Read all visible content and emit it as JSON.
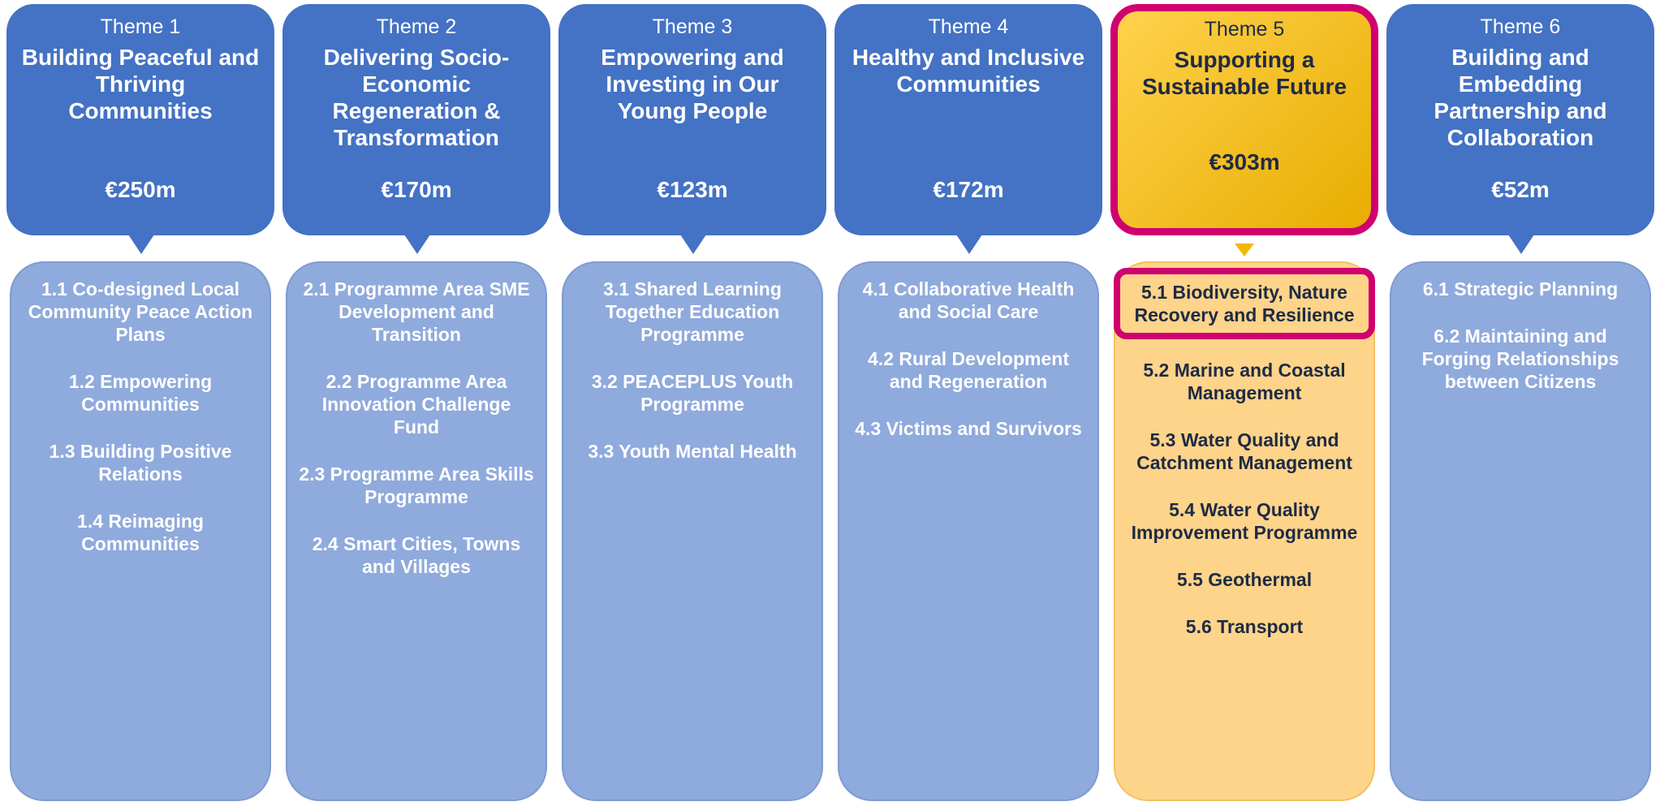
{
  "themes": [
    {
      "label": "Theme 1",
      "title": "Building Peaceful and Thriving Communities",
      "amount": "€250m",
      "highlighted": false,
      "items": [
        {
          "text": "1.1 Co-designed Local Community Peace Action Plans",
          "highlighted": false
        },
        {
          "text": "1.2 Empowering Communities",
          "highlighted": false
        },
        {
          "text": "1.3 Building Positive Relations",
          "highlighted": false
        },
        {
          "text": "1.4 Reimaging Communities",
          "highlighted": false
        }
      ]
    },
    {
      "label": "Theme 2",
      "title": "Delivering Socio-Economic Regeneration & Transformation",
      "amount": "€170m",
      "highlighted": false,
      "items": [
        {
          "text": "2.1 Programme Area SME Development and Transition",
          "highlighted": false
        },
        {
          "text": "2.2 Programme Area Innovation Challenge Fund",
          "highlighted": false
        },
        {
          "text": "2.3 Programme Area Skills Programme",
          "highlighted": false
        },
        {
          "text": "2.4 Smart Cities, Towns and Villages",
          "highlighted": false
        }
      ]
    },
    {
      "label": "Theme 3",
      "title": "Empowering and Investing in Our Young People",
      "amount": "€123m",
      "highlighted": false,
      "items": [
        {
          "text": "3.1 Shared Learning Together Education Programme",
          "highlighted": false
        },
        {
          "text": "3.2 PEACEPLUS Youth Programme",
          "highlighted": false
        },
        {
          "text": "3.3 Youth Mental Health",
          "highlighted": false
        }
      ]
    },
    {
      "label": "Theme 4",
      "title": "Healthy and Inclusive Communities",
      "amount": "€172m",
      "highlighted": false,
      "items": [
        {
          "text": "4.1 Collaborative Health and Social Care",
          "highlighted": false
        },
        {
          "text": "4.2 Rural Development and Regeneration",
          "highlighted": false
        },
        {
          "text": "4.3 Victims and Survivors",
          "highlighted": false
        }
      ]
    },
    {
      "label": "Theme 5",
      "title": "Supporting a Sustainable Future",
      "amount": "€303m",
      "highlighted": true,
      "items": [
        {
          "text": "5.1 Biodiversity, Nature Recovery and Resilience",
          "highlighted": true
        },
        {
          "text": "5.2 Marine and Coastal Management",
          "highlighted": false
        },
        {
          "text": "5.3 Water Quality and Catchment Management",
          "highlighted": false
        },
        {
          "text": "5.4 Water Quality Improvement Programme",
          "highlighted": false
        },
        {
          "text": "5.5 Geothermal",
          "highlighted": false
        },
        {
          "text": "5.6 Transport",
          "highlighted": false
        }
      ]
    },
    {
      "label": "Theme 6",
      "title": "Building and Embedding Partnership and Collaboration",
      "amount": "€52m",
      "highlighted": false,
      "items": [
        {
          "text": "6.1 Strategic Planning",
          "highlighted": false
        },
        {
          "text": "6.2 Maintaining and Forging Relationships between Citizens",
          "highlighted": false
        }
      ]
    }
  ]
}
